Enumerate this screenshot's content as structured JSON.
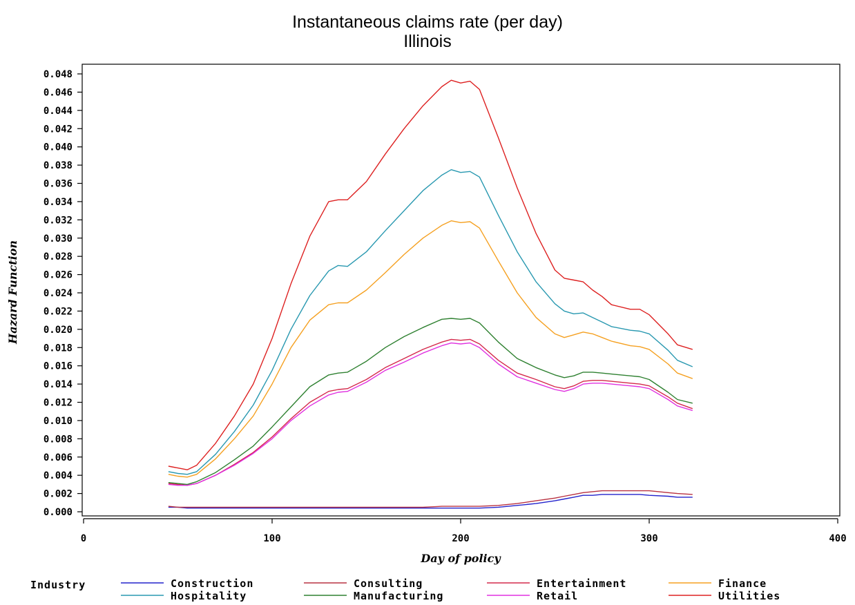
{
  "chart_data": {
    "type": "line",
    "title": "Instantaneous claims rate (per day)",
    "subtitle": "Illinois",
    "xlabel": "Day of policy",
    "ylabel": "Hazard Function",
    "xlim": [
      0,
      400
    ],
    "ylim": [
      0,
      0.048
    ],
    "x_ticks": [
      "0",
      "100",
      "200",
      "300",
      "400"
    ],
    "y_ticks": [
      "0.000",
      "0.002",
      "0.004",
      "0.006",
      "0.008",
      "0.010",
      "0.012",
      "0.014",
      "0.016",
      "0.018",
      "0.020",
      "0.022",
      "0.024",
      "0.026",
      "0.028",
      "0.030",
      "0.032",
      "0.034",
      "0.036",
      "0.038",
      "0.040",
      "0.042",
      "0.044",
      "0.046",
      "0.048"
    ],
    "grid": false,
    "legend": {
      "title": "Industry",
      "position": "bottom"
    },
    "x": [
      45,
      50,
      55,
      60,
      70,
      80,
      90,
      100,
      110,
      120,
      130,
      135,
      140,
      150,
      160,
      170,
      180,
      190,
      195,
      200,
      205,
      210,
      220,
      230,
      240,
      250,
      255,
      260,
      265,
      270,
      275,
      280,
      290,
      295,
      300,
      310,
      315,
      323
    ],
    "series": [
      {
        "name": "Construction",
        "color": "#2222cc",
        "values": [
          0.0005,
          0.0005,
          0.0004,
          0.0004,
          0.0004,
          0.0004,
          0.0004,
          0.0004,
          0.0004,
          0.0004,
          0.0004,
          0.0004,
          0.0004,
          0.0004,
          0.0004,
          0.0004,
          0.0004,
          0.0004,
          0.0004,
          0.0004,
          0.0004,
          0.0004,
          0.0005,
          0.0007,
          0.0009,
          0.0012,
          0.0014,
          0.0016,
          0.0018,
          0.0018,
          0.0019,
          0.0019,
          0.0019,
          0.0019,
          0.0018,
          0.0017,
          0.0016,
          0.0016
        ]
      },
      {
        "name": "Consulting",
        "color": "#b83040",
        "values": [
          0.0006,
          0.0005,
          0.0005,
          0.0005,
          0.0005,
          0.0005,
          0.0005,
          0.0005,
          0.0005,
          0.0005,
          0.0005,
          0.0005,
          0.0005,
          0.0005,
          0.0005,
          0.0005,
          0.0005,
          0.0006,
          0.0006,
          0.0006,
          0.0006,
          0.0006,
          0.0007,
          0.0009,
          0.0012,
          0.0015,
          0.0017,
          0.0019,
          0.0021,
          0.0022,
          0.0023,
          0.0023,
          0.0023,
          0.0023,
          0.0023,
          0.0021,
          0.002,
          0.0019
        ]
      },
      {
        "name": "Entertainment",
        "color": "#d4284a",
        "values": [
          0.0031,
          0.003,
          0.0029,
          0.0031,
          0.004,
          0.0052,
          0.0065,
          0.0082,
          0.0102,
          0.012,
          0.0132,
          0.0134,
          0.0135,
          0.0145,
          0.0158,
          0.0168,
          0.0178,
          0.0186,
          0.0189,
          0.0188,
          0.0189,
          0.0184,
          0.0166,
          0.0152,
          0.0145,
          0.0137,
          0.0135,
          0.0138,
          0.0143,
          0.0144,
          0.0144,
          0.0143,
          0.0141,
          0.014,
          0.0138,
          0.0126,
          0.0119,
          0.0113
        ]
      },
      {
        "name": "Finance",
        "color": "#f5a020",
        "values": [
          0.0041,
          0.0039,
          0.0038,
          0.0041,
          0.0058,
          0.008,
          0.0105,
          0.014,
          0.018,
          0.021,
          0.0227,
          0.0229,
          0.0229,
          0.0243,
          0.0262,
          0.0282,
          0.03,
          0.0314,
          0.0319,
          0.0317,
          0.0318,
          0.0311,
          0.0275,
          0.024,
          0.0213,
          0.0195,
          0.0191,
          0.0194,
          0.0197,
          0.0195,
          0.0191,
          0.0187,
          0.0182,
          0.0181,
          0.0178,
          0.0162,
          0.0152,
          0.0146
        ]
      },
      {
        "name": "Hospitality",
        "color": "#2898b0",
        "values": [
          0.0044,
          0.0042,
          0.0041,
          0.0044,
          0.0063,
          0.0088,
          0.0117,
          0.0155,
          0.02,
          0.0237,
          0.0264,
          0.027,
          0.0269,
          0.0285,
          0.0308,
          0.033,
          0.0352,
          0.0369,
          0.0375,
          0.0372,
          0.0373,
          0.0367,
          0.0325,
          0.0285,
          0.0252,
          0.0228,
          0.022,
          0.0217,
          0.0218,
          0.0213,
          0.0208,
          0.0203,
          0.0199,
          0.0198,
          0.0195,
          0.0177,
          0.0166,
          0.0159
        ]
      },
      {
        "name": "Manufacturing",
        "color": "#2e8030",
        "values": [
          0.0032,
          0.0031,
          0.003,
          0.0033,
          0.0043,
          0.0057,
          0.0072,
          0.0093,
          0.0115,
          0.0137,
          0.015,
          0.0152,
          0.0153,
          0.0165,
          0.018,
          0.0192,
          0.0202,
          0.0211,
          0.0212,
          0.0211,
          0.0212,
          0.0207,
          0.0186,
          0.0168,
          0.0158,
          0.015,
          0.0147,
          0.0149,
          0.0153,
          0.0153,
          0.0152,
          0.0151,
          0.0149,
          0.0148,
          0.0145,
          0.0131,
          0.0123,
          0.0119
        ]
      },
      {
        "name": "Retail",
        "color": "#e030e0",
        "values": [
          0.003,
          0.0029,
          0.0029,
          0.0031,
          0.004,
          0.0051,
          0.0064,
          0.008,
          0.01,
          0.0116,
          0.0128,
          0.0131,
          0.0132,
          0.0142,
          0.0155,
          0.0164,
          0.0174,
          0.0182,
          0.0185,
          0.0184,
          0.0185,
          0.018,
          0.0162,
          0.0148,
          0.0141,
          0.0134,
          0.0132,
          0.0135,
          0.014,
          0.0141,
          0.0141,
          0.014,
          0.0138,
          0.0137,
          0.0135,
          0.0123,
          0.0116,
          0.0111
        ]
      },
      {
        "name": "Utilities",
        "color": "#dd2020",
        "values": [
          0.005,
          0.0048,
          0.0046,
          0.0051,
          0.0075,
          0.0105,
          0.014,
          0.019,
          0.025,
          0.0302,
          0.034,
          0.0342,
          0.0342,
          0.0362,
          0.0392,
          0.042,
          0.0445,
          0.0466,
          0.0473,
          0.047,
          0.0472,
          0.0463,
          0.041,
          0.0355,
          0.0305,
          0.0265,
          0.0256,
          0.0254,
          0.0252,
          0.0243,
          0.0236,
          0.0227,
          0.0222,
          0.0222,
          0.0216,
          0.0195,
          0.0183,
          0.0178
        ]
      }
    ]
  }
}
